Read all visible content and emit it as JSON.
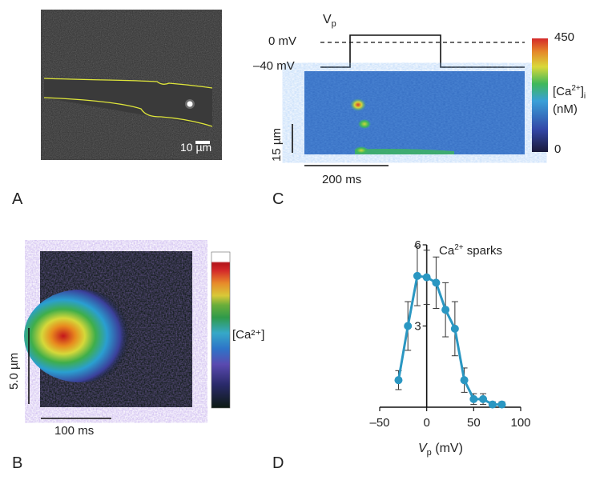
{
  "panels": {
    "a": {
      "letter": "A",
      "scale_label": "10 µm"
    },
    "b": {
      "letter": "B",
      "colorbar_label": "[Ca²⁺]",
      "y_scale_label": "5.0 µm",
      "x_scale_label": "100 ms"
    },
    "c": {
      "letter": "C",
      "vp_label": "V",
      "vp_sub": "p",
      "zero_mv_label": "0 mV",
      "neg40_label": "–40 mV",
      "y_scale_label": "15 µm",
      "x_scale_label": "200 ms",
      "colorbar_max": "450",
      "colorbar_min": "0",
      "colorbar_title_1": "[Ca",
      "colorbar_title_sup": "2+",
      "colorbar_title_2": "]",
      "colorbar_title_sub": "i",
      "colorbar_units": "(nM)"
    },
    "d": {
      "letter": "D",
      "series_label_1": "Ca",
      "series_label_sup": "2+",
      "series_label_2": " sparks",
      "xlabel_main": "V",
      "xlabel_sub": "p",
      "xlabel_units": " (mV)"
    }
  },
  "colors": {
    "series": "#2a97c2",
    "axis": "#111111",
    "trace_yellow": "#e6ec3a"
  },
  "chart_data": {
    "type": "line",
    "title": "Ca2+ sparks",
    "xlabel": "Vp (mV)",
    "ylabel": "",
    "xlim": [
      -50,
      100
    ],
    "ylim": [
      0,
      6
    ],
    "xticks": [
      -50,
      0,
      50,
      100
    ],
    "yticks": [
      3,
      6
    ],
    "xtick_labels": [
      "–50",
      "0",
      "50",
      "100"
    ],
    "ytick_labels": [
      "3",
      "6"
    ],
    "series": [
      {
        "name": "Ca2+ sparks",
        "x": [
          -30,
          -20,
          -10,
          0,
          10,
          20,
          30,
          40,
          50,
          60,
          70,
          80
        ],
        "y": [
          1.0,
          3.0,
          4.85,
          4.8,
          4.6,
          3.6,
          2.9,
          1.0,
          0.3,
          0.3,
          0.1,
          0.1
        ],
        "err": [
          0.35,
          0.9,
          1.1,
          1.0,
          0.95,
          1.0,
          1.0,
          0.45,
          0.2,
          0.2,
          0.1,
          0.1
        ]
      }
    ]
  }
}
